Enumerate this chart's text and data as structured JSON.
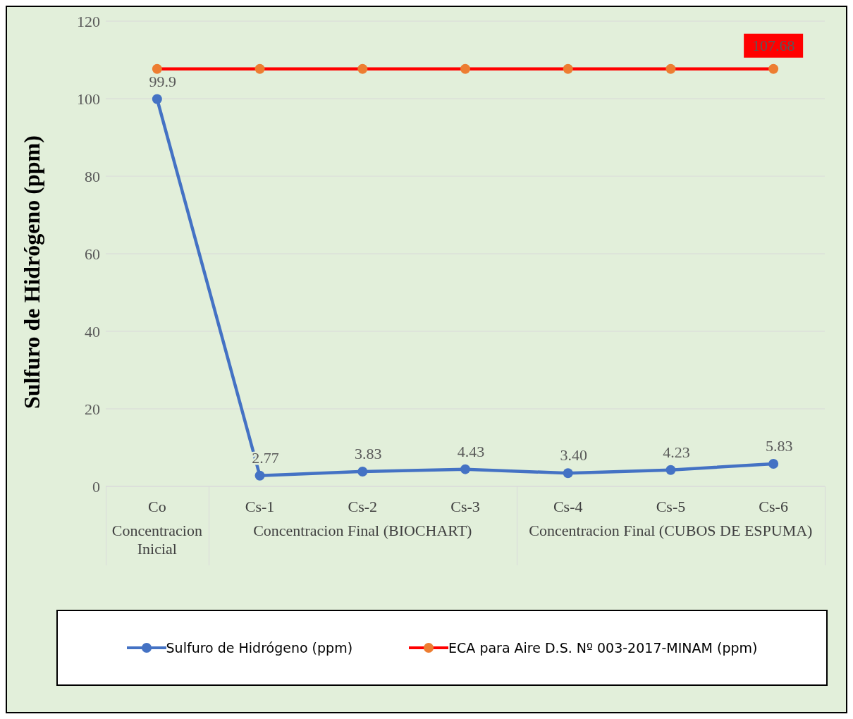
{
  "chart_data": {
    "type": "line",
    "ylabel": "Sulfuro de Hidrógeno (ppm)",
    "categories": [
      "Co",
      "Cs-1",
      "Cs-2",
      "Cs-3",
      "Cs-4",
      "Cs-5",
      "Cs-6"
    ],
    "series": [
      {
        "name": "Sulfuro de Hidrógeno (ppm)",
        "color": "#4472c4",
        "values": [
          99.9,
          2.77,
          3.83,
          4.43,
          3.4,
          4.23,
          5.83
        ],
        "value_labels": [
          "99.9",
          "2.77",
          "3.83",
          "4.43",
          "3.40",
          "4.23",
          "5.83"
        ]
      },
      {
        "name": "ECA para Aire D.S. Nº 003-2017-MINAM (ppm)",
        "color": "#ff0000",
        "colors": [
          "#ed7d31",
          "#ed7d31",
          "#ed7d31",
          "#ed7d31",
          "#ed7d31",
          "#ed7d31",
          "#ed7d31"
        ],
        "values": [
          107.68,
          107.68,
          107.68,
          107.68,
          107.68,
          107.68,
          107.68
        ],
        "value_labels": [
          null,
          null,
          null,
          null,
          null,
          null,
          "107.68"
        ]
      }
    ],
    "annotations": [
      "Concentracion Inicial",
      "Concentracion Final (BIOCHART)",
      "Concentracion Final (CUBOS DE ESPUMA)"
    ],
    "ylim": [
      0,
      120
    ],
    "yticks": [
      0,
      20,
      40,
      60,
      80,
      100,
      120
    ],
    "grid": "y",
    "legend": "bottom",
    "marker": "circle",
    "line_style": "solid"
  }
}
